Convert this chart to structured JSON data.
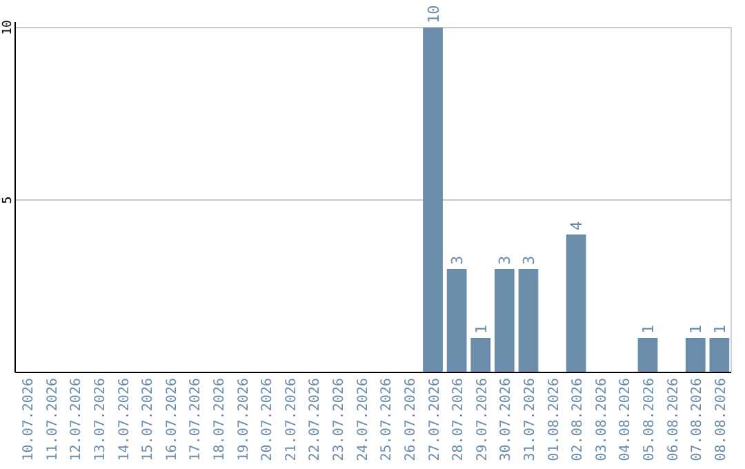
{
  "chart_data": {
    "type": "bar",
    "categories": [
      "10.07.2026",
      "11.07.2026",
      "12.07.2026",
      "13.07.2026",
      "14.07.2026",
      "15.07.2026",
      "16.07.2026",
      "17.07.2026",
      "18.07.2026",
      "19.07.2026",
      "20.07.2026",
      "21.07.2026",
      "22.07.2026",
      "23.07.2026",
      "24.07.2026",
      "25.07.2026",
      "26.07.2026",
      "27.07.2026",
      "28.07.2026",
      "29.07.2026",
      "30.07.2026",
      "31.07.2026",
      "01.08.2026",
      "02.08.2026",
      "03.08.2026",
      "04.08.2026",
      "05.08.2026",
      "06.08.2026",
      "07.08.2026",
      "08.08.2026"
    ],
    "values": [
      0,
      0,
      0,
      0,
      0,
      0,
      0,
      0,
      0,
      0,
      0,
      0,
      0,
      0,
      0,
      0,
      0,
      10,
      3,
      1,
      3,
      3,
      0,
      4,
      0,
      0,
      1,
      0,
      1,
      1
    ],
    "value_labels": [
      null,
      null,
      null,
      null,
      null,
      null,
      null,
      null,
      null,
      null,
      null,
      null,
      null,
      null,
      null,
      null,
      null,
      "10",
      "3",
      "1",
      "3",
      "3",
      null,
      "4",
      null,
      null,
      "1",
      null,
      "1",
      "1"
    ],
    "color": "#6b8cab",
    "ylim": [
      0,
      10
    ],
    "yticks": [
      5,
      10
    ],
    "grid": "y"
  }
}
